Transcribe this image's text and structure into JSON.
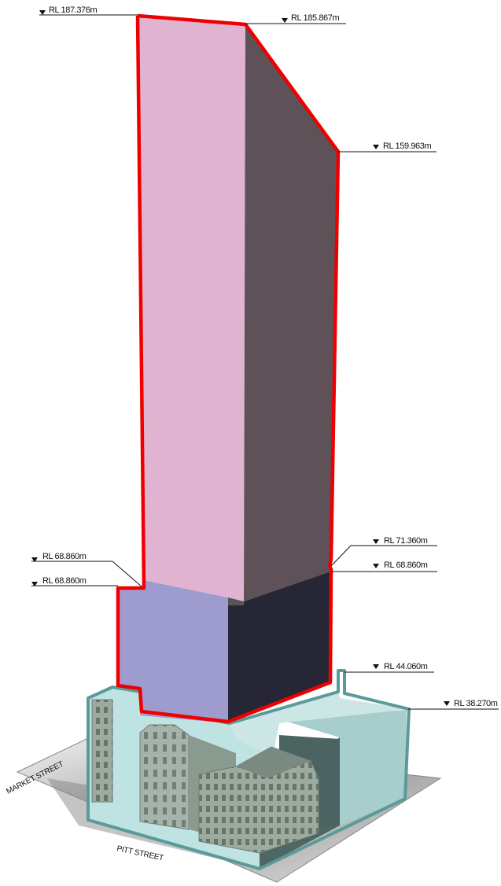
{
  "levels": {
    "rl_187_376": "RL 187.376m",
    "rl_185_867": "RL 185.867m",
    "rl_159_963": "RL 159.963m",
    "rl_71_360": "RL 71.360m",
    "rl_68_860_right": "RL 68.860m",
    "rl_68_860_left_upper": "RL 68.860m",
    "rl_68_860_left_lower": "RL 68.860m",
    "rl_44_060": "RL 44.060m",
    "rl_38_270": "RL 38.270m"
  },
  "streets": {
    "market": "MARKET STREET",
    "pitt": "PITT STREET"
  },
  "colors": {
    "tower_front": "#e0b4d1",
    "tower_side": "#5e5158",
    "podium_front": "#9e9cce",
    "podium_side": "#272636",
    "envelope_outline": "#ee0000",
    "base_glass": "#bfe2e2",
    "base_outline": "#5a9a9a",
    "heritage": "#9aaa9e"
  }
}
